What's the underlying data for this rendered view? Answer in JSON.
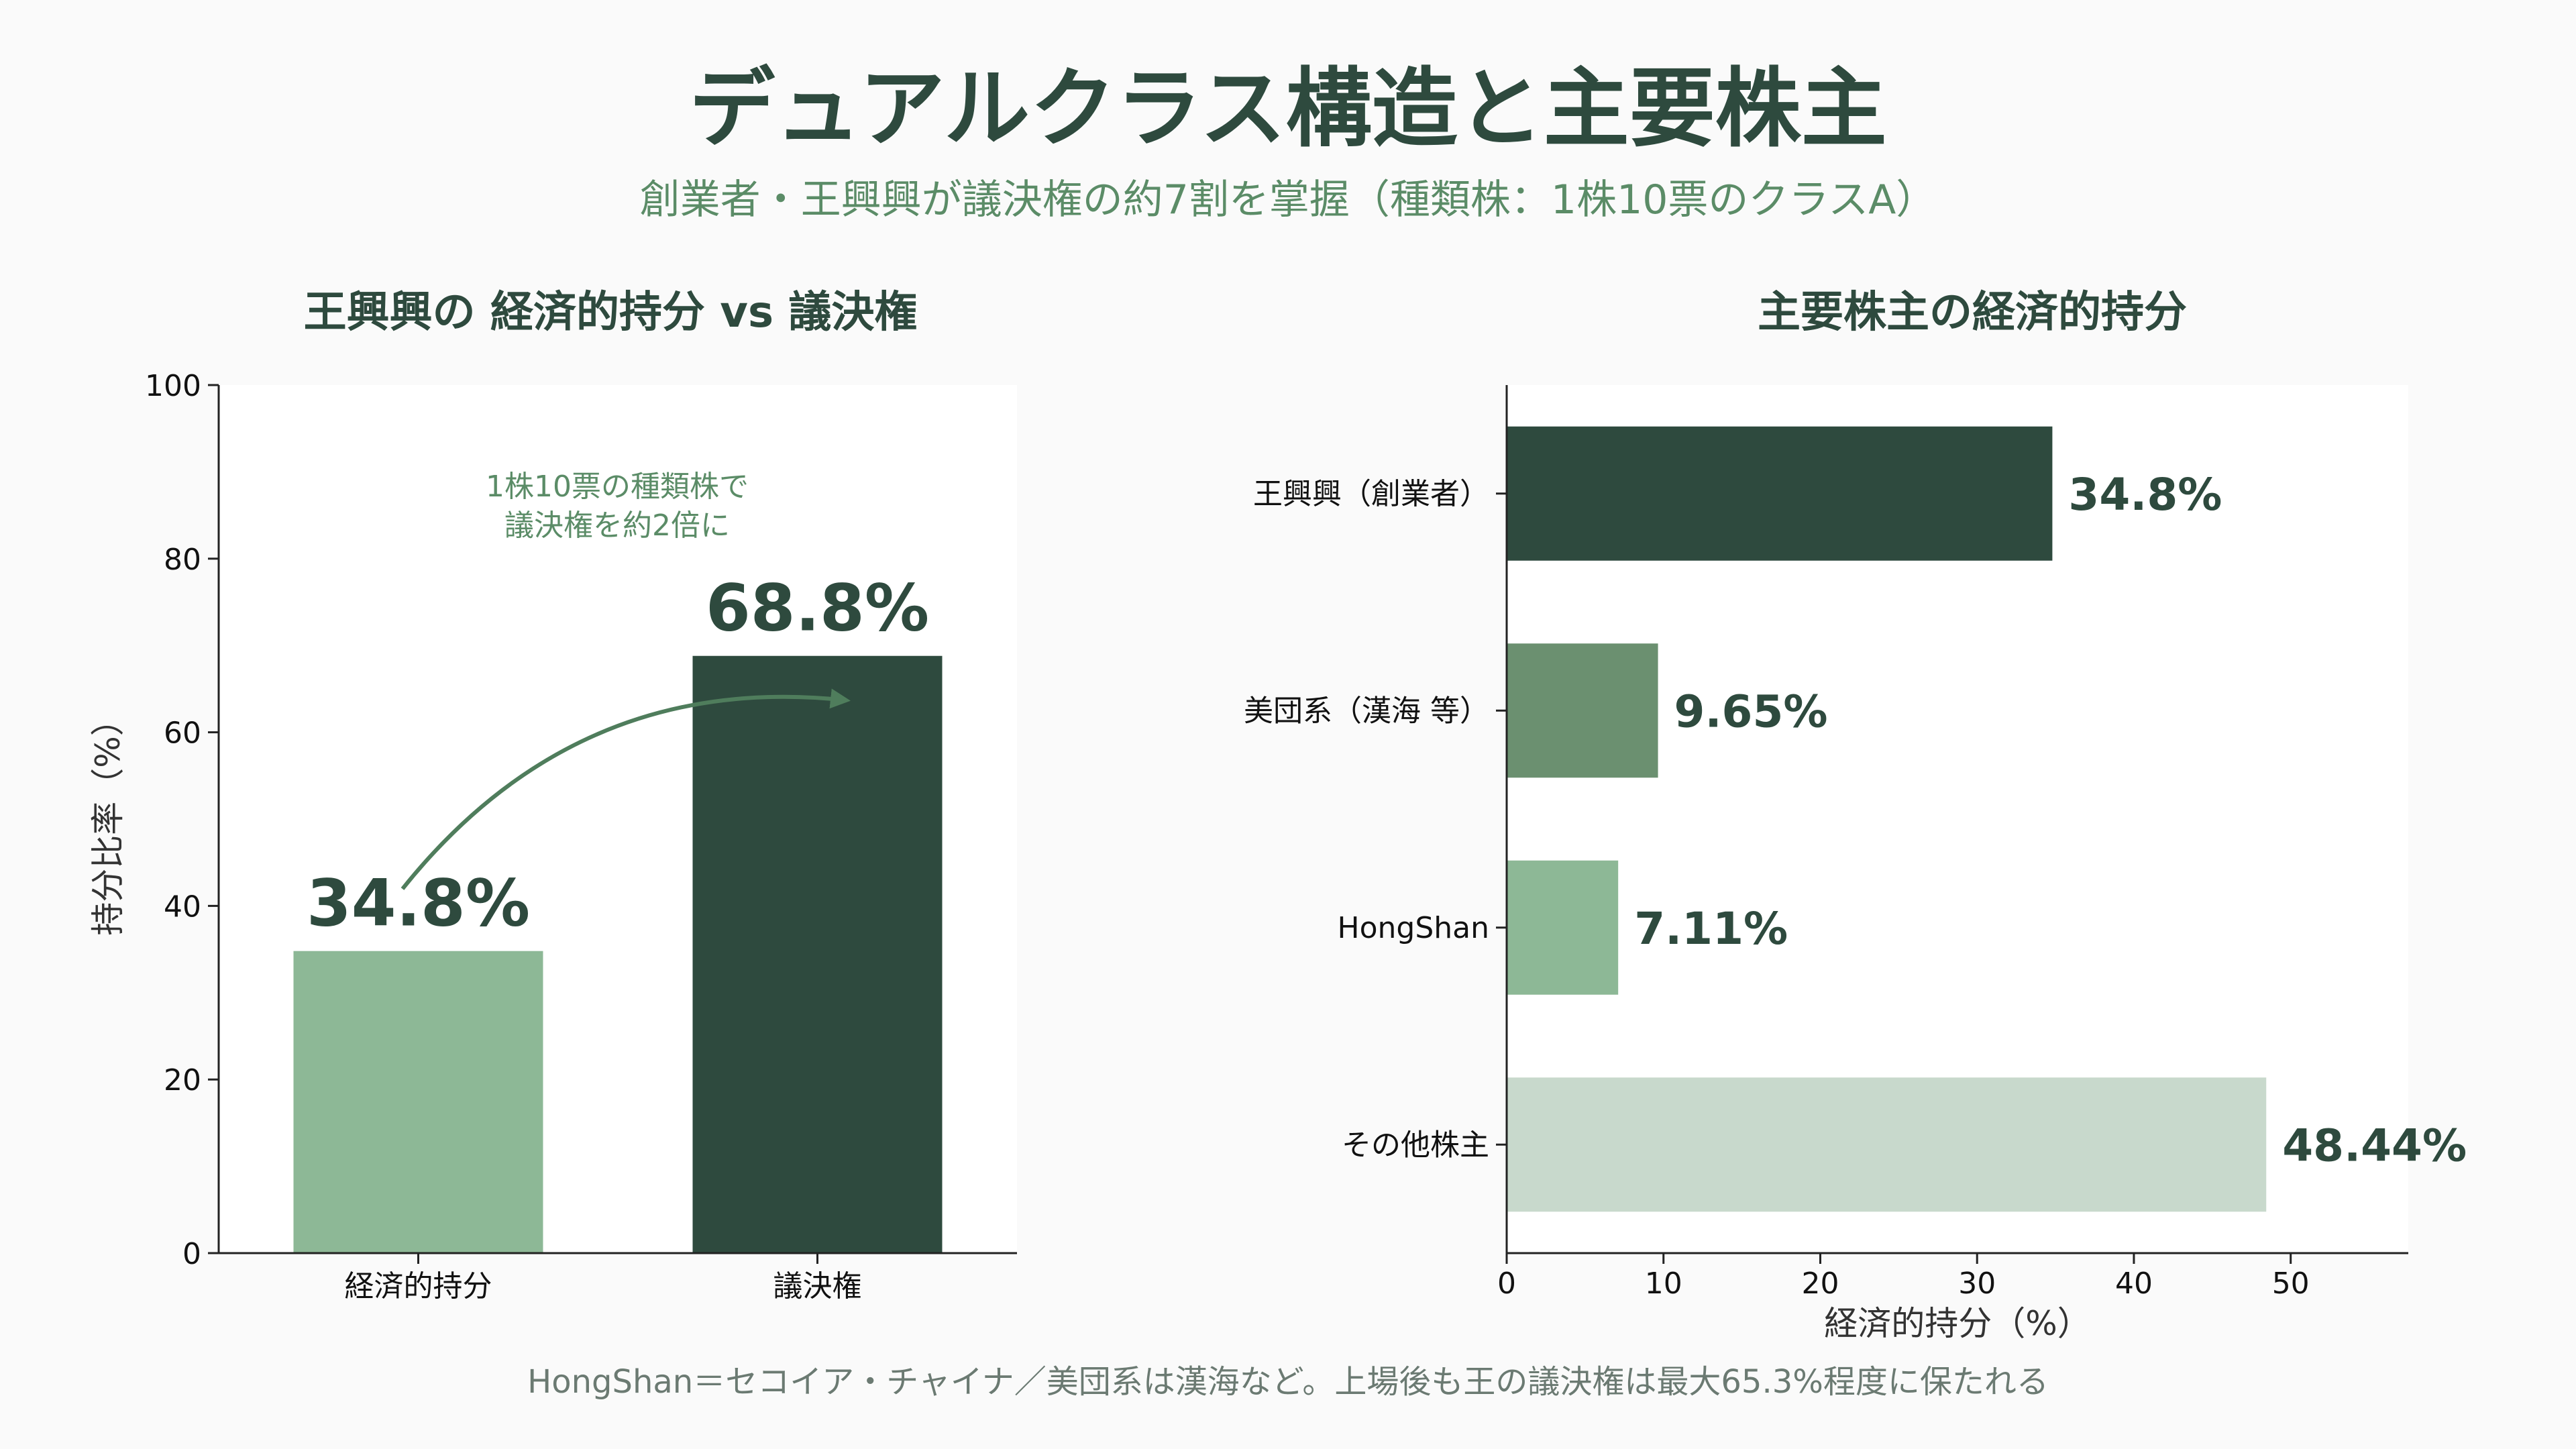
{
  "title": "デュアルクラス構造と主要株主",
  "subtitle": "創業者・王興興が議決権の約7割を掌握（種類株：1株10票のクラスA）",
  "footnote": "HongShan＝セコイア・チャイナ／美団系は漢海など。上場後も王の議決権は最大65.3%程度に保たれる",
  "colors": {
    "dark": "#2e4a3e",
    "medium": "#6b9070",
    "light": "#8db896",
    "pale": "#c8d9cc",
    "accent_text": "#5b8c67"
  },
  "chart_data": [
    {
      "type": "bar",
      "title": "王興興の 経済的持分 vs 議決権",
      "xlabel": "",
      "ylabel": "持分比率（%）",
      "ylim": [
        0,
        100
      ],
      "yticks": [
        0,
        20,
        40,
        60,
        80,
        100
      ],
      "categories": [
        "経済的持分",
        "議決権"
      ],
      "values": [
        34.8,
        68.8
      ],
      "data_labels": [
        "34.8%",
        "68.8%"
      ],
      "annotation": "1株10票の種類株で\n議決権を約2倍に",
      "grid": false
    },
    {
      "type": "bar",
      "orientation": "horizontal",
      "title": "主要株主の経済的持分",
      "xlabel": "経済的持分（%）",
      "ylabel": "",
      "xlim": [
        0,
        57.5
      ],
      "xticks": [
        0,
        10,
        20,
        30,
        40,
        50
      ],
      "categories": [
        "王興興（創業者）",
        "美団系（漢海 等）",
        "HongShan",
        "その他株主"
      ],
      "values": [
        34.8,
        9.65,
        7.11,
        48.44
      ],
      "data_labels": [
        "34.8%",
        "9.65%",
        "7.11%",
        "48.44%"
      ],
      "grid": false
    }
  ]
}
